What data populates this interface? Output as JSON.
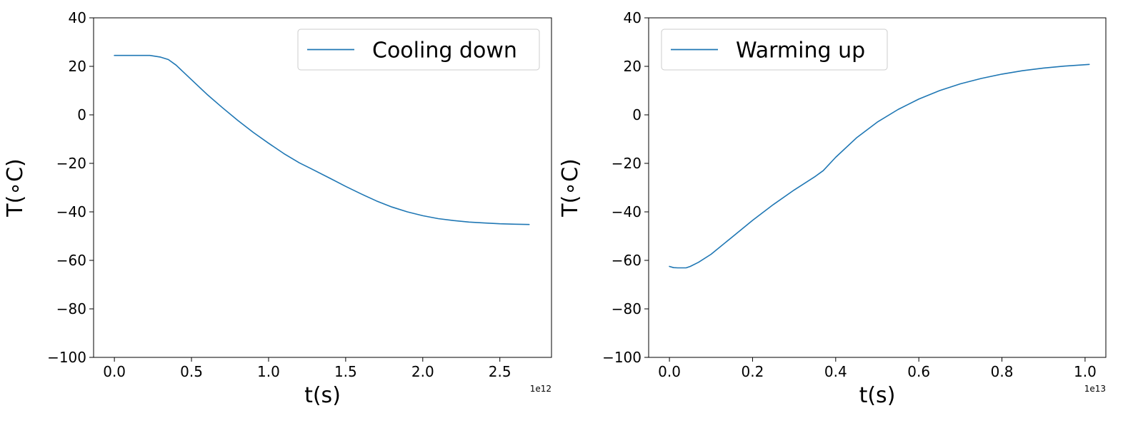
{
  "chart_data": [
    {
      "type": "line",
      "xlabel": "t(s)",
      "ylabel": "T(∘C)",
      "x_offset_label": "1e12",
      "xlim": [
        -0.135,
        2.835
      ],
      "ylim": [
        -100,
        40
      ],
      "xticks": [
        0.0,
        0.5,
        1.0,
        1.5,
        2.0,
        2.5
      ],
      "xtick_labels": [
        "0.0",
        "0.5",
        "1.0",
        "1.5",
        "2.0",
        "2.5"
      ],
      "yticks": [
        -100,
        -80,
        -60,
        -40,
        -20,
        0,
        20,
        40
      ],
      "ytick_labels": [
        "−100",
        "−80",
        "−60",
        "−40",
        "−20",
        "0",
        "20",
        "40"
      ],
      "grid": false,
      "legend_position": "top-right",
      "series": [
        {
          "name": "Cooling down",
          "color": "#1f77b4",
          "x": [
            0.0,
            0.1,
            0.23,
            0.3,
            0.35,
            0.4,
            0.5,
            0.6,
            0.7,
            0.8,
            0.9,
            1.0,
            1.1,
            1.2,
            1.27,
            1.4,
            1.5,
            1.6,
            1.7,
            1.8,
            1.9,
            2.0,
            2.1,
            2.2,
            2.3,
            2.4,
            2.5,
            2.6,
            2.69
          ],
          "y": [
            24.5,
            24.5,
            24.5,
            23.8,
            22.8,
            20.5,
            14.5,
            8.5,
            3.0,
            -2.3,
            -7.2,
            -11.7,
            -16.0,
            -19.8,
            -22.0,
            -26.2,
            -29.5,
            -32.6,
            -35.5,
            -38.0,
            -40.0,
            -41.6,
            -42.8,
            -43.6,
            -44.2,
            -44.6,
            -44.9,
            -45.1,
            -45.2
          ]
        }
      ]
    },
    {
      "type": "line",
      "xlabel": "t(s)",
      "ylabel": "T(∘C)",
      "x_offset_label": "1e13",
      "xlim": [
        -0.05,
        1.05
      ],
      "ylim": [
        -100,
        40
      ],
      "xticks": [
        0.0,
        0.2,
        0.4,
        0.6,
        0.8,
        1.0
      ],
      "xtick_labels": [
        "0.0",
        "0.2",
        "0.4",
        "0.6",
        "0.8",
        "1.0"
      ],
      "yticks": [
        -100,
        -80,
        -60,
        -40,
        -20,
        0,
        20,
        40
      ],
      "ytick_labels": [
        "−100",
        "−80",
        "−60",
        "−40",
        "−20",
        "0",
        "20",
        "40"
      ],
      "grid": false,
      "legend_position": "top-left",
      "series": [
        {
          "name": "Warming up",
          "color": "#1f77b4",
          "x": [
            0.0,
            0.01,
            0.02,
            0.04,
            0.05,
            0.07,
            0.1,
            0.15,
            0.2,
            0.25,
            0.3,
            0.35,
            0.37,
            0.4,
            0.45,
            0.5,
            0.55,
            0.6,
            0.65,
            0.7,
            0.75,
            0.8,
            0.85,
            0.9,
            0.95,
            1.01
          ],
          "y": [
            -62.5,
            -63.0,
            -63.1,
            -63.1,
            -62.5,
            -60.8,
            -57.5,
            -50.5,
            -43.5,
            -37.0,
            -31.0,
            -25.5,
            -23.0,
            -17.5,
            -9.5,
            -3.0,
            2.2,
            6.5,
            10.0,
            12.8,
            15.0,
            16.8,
            18.2,
            19.3,
            20.1,
            20.8
          ]
        }
      ]
    }
  ]
}
